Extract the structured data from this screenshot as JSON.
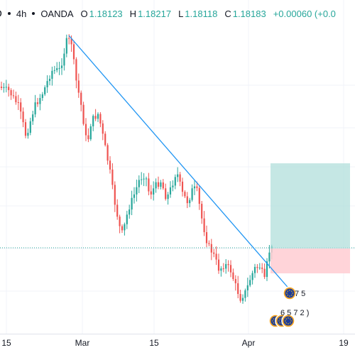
{
  "legend": {
    "symbol_fragment": "D",
    "interval": "4h",
    "exchange": "OANDA",
    "open_label": "O",
    "open": "1.18123",
    "high_label": "H",
    "high": "1.18217",
    "low_label": "L",
    "low": "1.18118",
    "close_label": "C",
    "close": "1.18183",
    "change": "+0.00060 (+0.0"
  },
  "colors": {
    "up": "#26a69a",
    "down": "#ef5350",
    "trendline": "#2196f3",
    "profit_zone": "#b2dfdb",
    "loss_zone": "#ffcdd2",
    "price_line": "#26a69a",
    "grid": "#f0f3fa"
  },
  "x_axis": {
    "labels": [
      "15",
      "Mar",
      "15",
      "Apr",
      "19"
    ]
  },
  "badges": {
    "top_text": "7 5",
    "bottom_text": "6 5 7 2 )",
    "icon": "eu-flag-icon"
  },
  "chart_data": {
    "type": "candlestick",
    "series": "EURUSD 4h (partial view)",
    "visible_close": 1.18183,
    "drawings": [
      "descending trendline",
      "long position tool (profit zone teal, stop zone red)"
    ]
  }
}
